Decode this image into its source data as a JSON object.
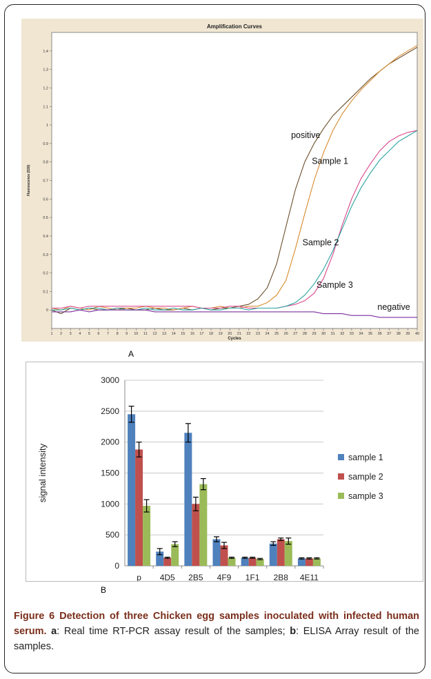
{
  "colors": {
    "panel_a_background": "#f1e6d2",
    "positive_line": "#6b4f2a",
    "sample1_line": "#d88a2e",
    "sample2_line": "#d9478c",
    "sample3_line": "#2aa3a0",
    "negative_line": "#7a2d9c",
    "sample1_bar": "#4f81bd",
    "sample2_bar": "#c0504d",
    "sample3_bar": "#9bbb59",
    "caption_title": "#7a2e1b"
  },
  "panel_a_label": "A",
  "panel_b_label": "B",
  "chart_data": [
    {
      "type": "line",
      "title": "Amplification Curves",
      "xlabel": "Cycles",
      "ylabel": "Fluorescence (530)",
      "xlim": [
        1,
        40
      ],
      "ylim": [
        -0.1,
        1.5
      ],
      "x_ticks": [
        1,
        2,
        3,
        4,
        5,
        6,
        7,
        8,
        9,
        10,
        11,
        12,
        13,
        14,
        15,
        16,
        17,
        18,
        19,
        20,
        21,
        22,
        23,
        24,
        25,
        26,
        27,
        28,
        29,
        30,
        31,
        32,
        33,
        34,
        35,
        36,
        37,
        38,
        39,
        40
      ],
      "y_ticks": [
        0,
        0.1,
        0.2,
        0.3,
        0.4,
        0.5,
        0.6,
        0.7,
        0.8,
        0.9,
        1,
        1.1,
        1.2,
        1.3,
        1.4
      ],
      "y_tick_labels": [
        "0",
        "0.1",
        "0.2",
        "0.3",
        "0.4",
        "0.5",
        "0.6",
        "0.7",
        "0.8",
        "0.9",
        "1",
        "1.1",
        "1.2",
        "1.3",
        "1.4"
      ],
      "series": [
        {
          "name": "positive",
          "color": "#6b4f2a",
          "x": [
            1,
            2,
            3,
            4,
            5,
            6,
            7,
            8,
            9,
            10,
            11,
            12,
            13,
            14,
            15,
            16,
            17,
            18,
            19,
            20,
            21,
            22,
            23,
            24,
            25,
            26,
            27,
            28,
            29,
            30,
            31,
            32,
            33,
            34,
            35,
            36,
            37,
            38,
            39,
            40
          ],
          "y": [
            0,
            -0.02,
            0.01,
            0,
            0.01,
            0,
            0,
            0.01,
            0.01,
            0,
            0,
            0.01,
            0,
            0,
            0.01,
            0,
            0.01,
            0,
            0.01,
            0.01,
            0.02,
            0.03,
            0.06,
            0.12,
            0.25,
            0.45,
            0.65,
            0.8,
            0.9,
            0.98,
            1.05,
            1.1,
            1.15,
            1.2,
            1.25,
            1.29,
            1.33,
            1.36,
            1.39,
            1.42
          ]
        },
        {
          "name": "Sample 1",
          "color": "#d88a2e",
          "x": [
            1,
            2,
            3,
            4,
            5,
            6,
            7,
            8,
            9,
            10,
            11,
            12,
            13,
            14,
            15,
            16,
            17,
            18,
            19,
            20,
            21,
            22,
            23,
            24,
            25,
            26,
            27,
            28,
            29,
            30,
            31,
            32,
            33,
            34,
            35,
            36,
            37,
            38,
            39,
            40
          ],
          "y": [
            0.01,
            0,
            0.02,
            0.01,
            0,
            0.02,
            0.01,
            0,
            0.01,
            0.01,
            0.02,
            0.01,
            0.01,
            0,
            0.01,
            0.02,
            0.01,
            0.01,
            0.02,
            0.01,
            0.01,
            0.02,
            0.02,
            0.04,
            0.08,
            0.16,
            0.33,
            0.52,
            0.7,
            0.85,
            0.97,
            1.06,
            1.13,
            1.19,
            1.24,
            1.29,
            1.33,
            1.37,
            1.4,
            1.43
          ]
        },
        {
          "name": "Sample 2",
          "color": "#d9478c",
          "x": [
            1,
            2,
            3,
            4,
            5,
            6,
            7,
            8,
            9,
            10,
            11,
            12,
            13,
            14,
            15,
            16,
            17,
            18,
            19,
            20,
            21,
            22,
            23,
            24,
            25,
            26,
            27,
            28,
            29,
            30,
            31,
            32,
            33,
            34,
            35,
            36,
            37,
            38,
            39,
            40
          ],
          "y": [
            0.01,
            0.01,
            0.02,
            0.01,
            0.02,
            0.02,
            0.02,
            0.02,
            0.02,
            0.02,
            0.02,
            0.02,
            0.02,
            0.02,
            0.02,
            0.02,
            0.01,
            0.01,
            0.01,
            0.02,
            0.02,
            0.01,
            0.01,
            0.01,
            0.01,
            0.02,
            0.03,
            0.05,
            0.09,
            0.17,
            0.3,
            0.46,
            0.6,
            0.71,
            0.79,
            0.86,
            0.91,
            0.94,
            0.96,
            0.97
          ]
        },
        {
          "name": "Sample 3",
          "color": "#2aa3a0",
          "x": [
            1,
            2,
            3,
            4,
            5,
            6,
            7,
            8,
            9,
            10,
            11,
            12,
            13,
            14,
            15,
            16,
            17,
            18,
            19,
            20,
            21,
            22,
            23,
            24,
            25,
            26,
            27,
            28,
            29,
            30,
            31,
            32,
            33,
            34,
            35,
            36,
            37,
            38,
            39,
            40
          ],
          "y": [
            0,
            0,
            0.01,
            0,
            0.01,
            0.01,
            0,
            0.01,
            0,
            0,
            0.01,
            0,
            0,
            0.01,
            0,
            0,
            0.01,
            0,
            0,
            0.01,
            0.01,
            0,
            0.01,
            0.01,
            0.01,
            0.02,
            0.04,
            0.08,
            0.14,
            0.22,
            0.32,
            0.44,
            0.56,
            0.66,
            0.74,
            0.81,
            0.86,
            0.91,
            0.94,
            0.97
          ]
        },
        {
          "name": "negative",
          "color": "#7a2d9c",
          "x": [
            1,
            2,
            3,
            4,
            5,
            6,
            7,
            8,
            9,
            10,
            11,
            12,
            13,
            14,
            15,
            16,
            17,
            18,
            19,
            20,
            21,
            22,
            23,
            24,
            25,
            26,
            27,
            28,
            29,
            30,
            31,
            32,
            33,
            34,
            35,
            36,
            37,
            38,
            39,
            40
          ],
          "y": [
            -0.01,
            -0.01,
            -0.01,
            0,
            -0.01,
            0,
            0,
            0,
            0,
            0,
            0,
            -0.01,
            -0.01,
            -0.01,
            -0.01,
            -0.01,
            -0.01,
            -0.01,
            -0.01,
            -0.01,
            -0.01,
            -0.01,
            -0.01,
            -0.01,
            -0.01,
            -0.01,
            -0.01,
            -0.01,
            -0.01,
            -0.02,
            -0.02,
            -0.02,
            -0.03,
            -0.03,
            -0.03,
            -0.04,
            -0.04,
            -0.04,
            -0.04,
            -0.04
          ]
        }
      ],
      "annotations": [
        {
          "text": "positive",
          "x": 28.1,
          "y": 0.93
        },
        {
          "text": "Sample 1",
          "x": 30.7,
          "y": 0.79
        },
        {
          "text": "Sample 2",
          "x": 29.7,
          "y": 0.35
        },
        {
          "text": "Sample 3",
          "x": 31.2,
          "y": 0.12
        },
        {
          "text": "negative",
          "x": 37.5,
          "y": 0.0
        }
      ]
    },
    {
      "type": "bar",
      "title": "",
      "xlabel": "",
      "ylabel": "signal  intensity",
      "ylim": [
        0,
        3000
      ],
      "y_ticks": [
        0,
        500,
        1000,
        1500,
        2000,
        2500,
        3000
      ],
      "grid": true,
      "legend": "right",
      "categories": [
        "p",
        "4D5",
        "2B5",
        "4F9",
        "1F1",
        "2B8",
        "4E11"
      ],
      "series": [
        {
          "name": "sample 1",
          "color": "#4f81bd",
          "values": [
            2450,
            230,
            2150,
            430,
            130,
            360,
            120
          ],
          "errors": [
            130,
            50,
            150,
            40,
            10,
            30,
            10
          ]
        },
        {
          "name": "sample 2",
          "color": "#c0504d",
          "values": [
            1880,
            130,
            1000,
            330,
            130,
            430,
            120
          ],
          "errors": [
            120,
            10,
            110,
            50,
            10,
            20,
            10
          ]
        },
        {
          "name": "sample 3",
          "color": "#9bbb59",
          "values": [
            970,
            350,
            1320,
            130,
            110,
            400,
            120
          ],
          "errors": [
            100,
            40,
            90,
            10,
            10,
            50,
            10
          ]
        }
      ]
    }
  ],
  "caption": {
    "title": "Figure 6 Detection of three Chicken egg samples inoculated with infected human serum",
    "sep1": ". ",
    "a_letter": "a",
    "a_text": ": Real time RT-PCR assay result of the samples; ",
    "b_letter": "b",
    "b_text": ": ELISA Array result of the samples."
  }
}
